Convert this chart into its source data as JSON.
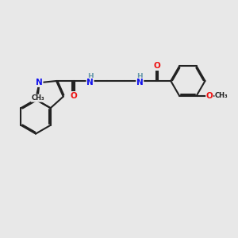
{
  "bg_color": "#e8e8e8",
  "bond_color": "#222222",
  "bond_lw": 1.5,
  "dbl_off": 0.045,
  "atom_colors": {
    "N": "#1010ee",
    "O": "#ee1010",
    "H": "#6699aa",
    "C": "#222222"
  },
  "fs": 7.5,
  "fs_sm": 6.5
}
